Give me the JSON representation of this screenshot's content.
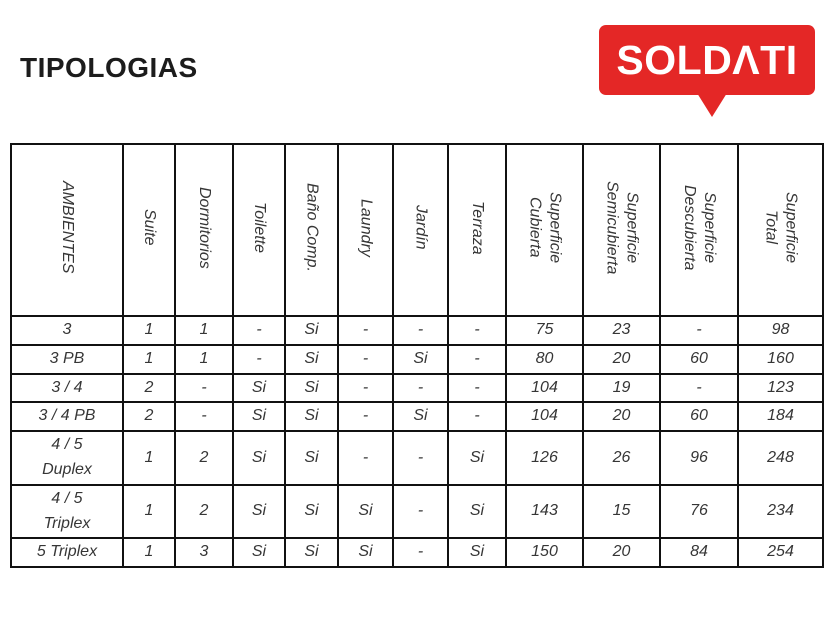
{
  "page": {
    "title": "TIPOLOGIAS"
  },
  "logo": {
    "brand": "SOLDATI",
    "display": "SOLDΛTI",
    "bg_color": "#e42726",
    "text_color": "#ffffff"
  },
  "table": {
    "columns": [
      {
        "label": "AMBIENTES"
      },
      {
        "label": "Suite"
      },
      {
        "label": "Dormitorios"
      },
      {
        "label": "Toilette"
      },
      {
        "label": "Baño Comp."
      },
      {
        "label": "Laundry"
      },
      {
        "label": "Jardín"
      },
      {
        "label": "Terraza"
      },
      {
        "label": "Superficie\nCubierta"
      },
      {
        "label": "Superficie\nSemicubierta"
      },
      {
        "label": "Superficie\nDescubierta"
      },
      {
        "label": "Superficie\nTotal"
      }
    ],
    "rows": [
      {
        "cells": [
          "3",
          "1",
          "1",
          "-",
          "Si",
          "-",
          "-",
          "-",
          "75",
          "23",
          "-",
          "98"
        ]
      },
      {
        "cells": [
          "3 PB",
          "1",
          "1",
          "-",
          "Si",
          "-",
          "Si",
          "-",
          "80",
          "20",
          "60",
          "160"
        ]
      },
      {
        "cells": [
          "3 / 4",
          "2",
          "-",
          "Si",
          "Si",
          "-",
          "-",
          "-",
          "104",
          "19",
          "-",
          "123"
        ]
      },
      {
        "cells": [
          "3 / 4 PB",
          "2",
          "-",
          "Si",
          "Si",
          "-",
          "Si",
          "-",
          "104",
          "20",
          "60",
          "184"
        ]
      },
      {
        "cells": [
          "4 / 5\nDuplex",
          "1",
          "2",
          "Si",
          "Si",
          "-",
          "-",
          "Si",
          "126",
          "26",
          "96",
          "248"
        ]
      },
      {
        "cells": [
          "4 / 5\nTriplex",
          "1",
          "2",
          "Si",
          "Si",
          "Si",
          "-",
          "Si",
          "143",
          "15",
          "76",
          "234"
        ]
      },
      {
        "cells": [
          "5 Triplex",
          "1",
          "3",
          "Si",
          "Si",
          "Si",
          "-",
          "Si",
          "150",
          "20",
          "84",
          "254"
        ]
      }
    ]
  }
}
